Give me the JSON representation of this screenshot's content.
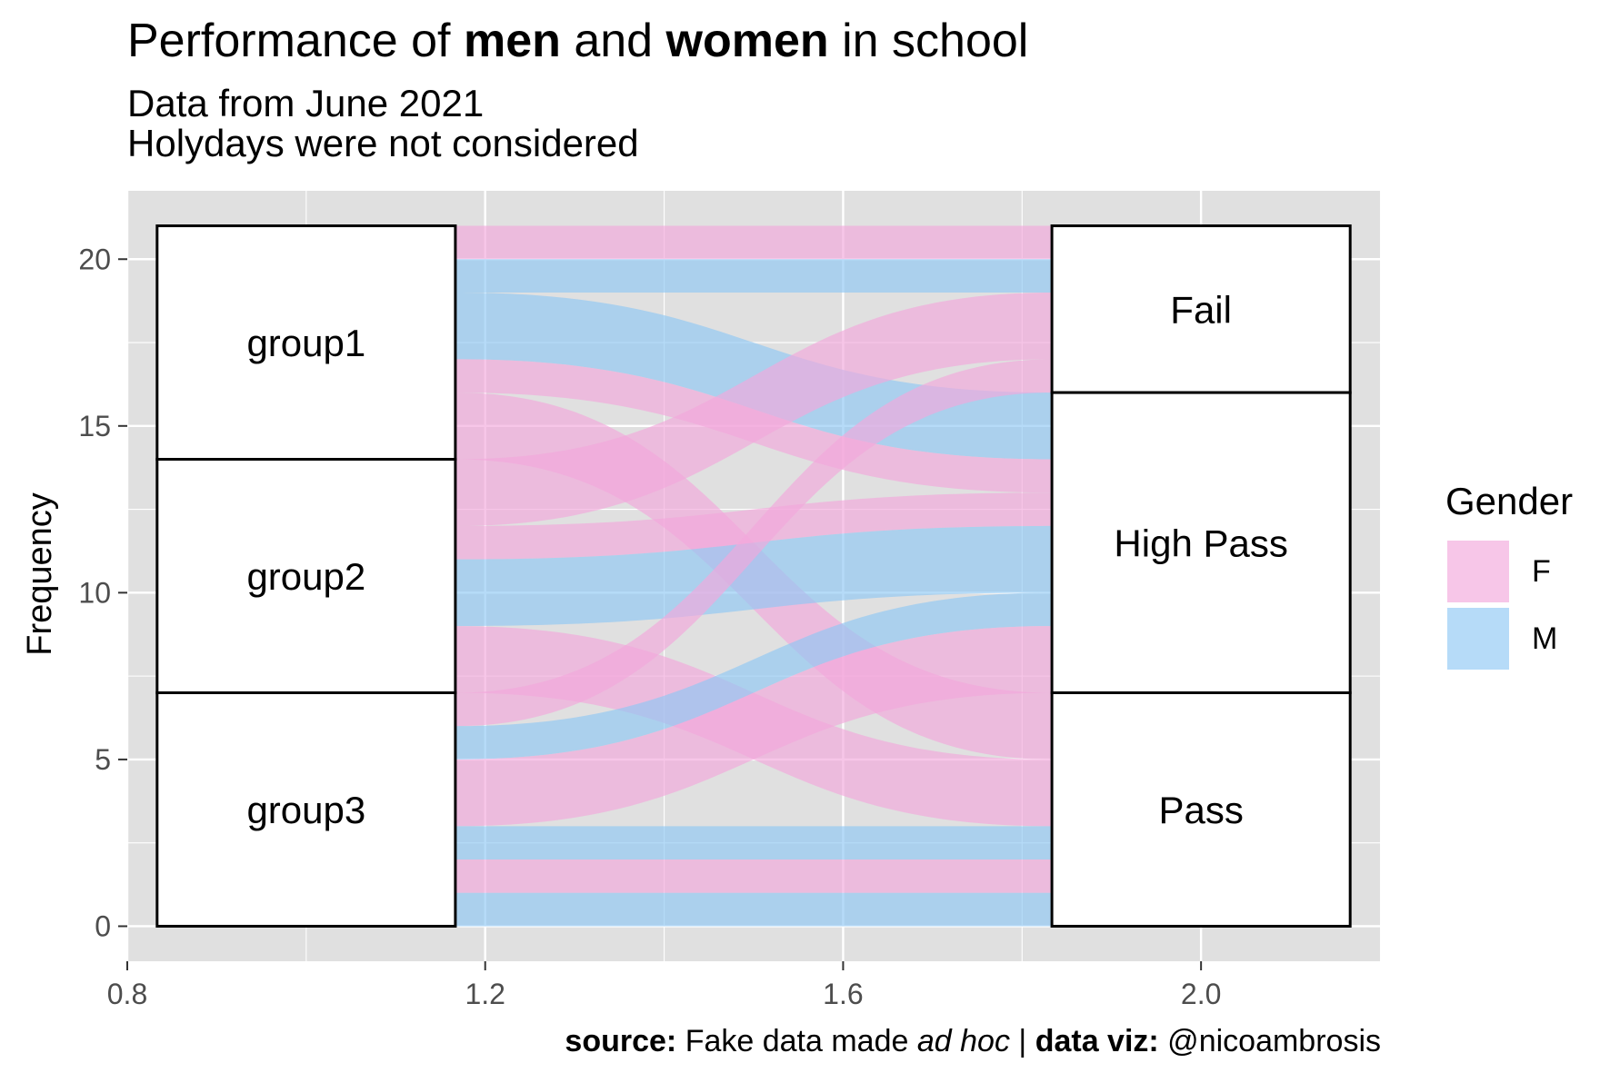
{
  "title": {
    "prefix": "Performance of ",
    "men": "men",
    "and": " and ",
    "women": "women",
    "suffix": " in school"
  },
  "subtitle": {
    "line1": "Data from June 2021",
    "line2": "Holydays were not considered"
  },
  "caption": {
    "source_label": "source:",
    "source_text": " Fake data made ",
    "adhoc": "ad hoc",
    "sep": " | ",
    "viz_label": "data viz:",
    "viz_text": " @nicoambrosis"
  },
  "colors": {
    "panel_bg": "#e0e0e0",
    "grid": "#ffffff",
    "F": "#f3a7dc",
    "M": "#8fc7f5",
    "stratum_fill": "#ffffff",
    "stratum_stroke": "#000000"
  },
  "chart_data": {
    "type": "alluvial",
    "xlabel": "",
    "ylabel": "Frequency",
    "xlim": [
      0.8,
      2.2
    ],
    "ylim": [
      0,
      20
    ],
    "x_ticks": [
      "0.8",
      "1.2",
      "1.6",
      "2.0"
    ],
    "y_ticks": [
      "0",
      "5",
      "10",
      "15",
      "20"
    ],
    "axis1": {
      "x": 1,
      "strata": [
        "group1",
        "group2",
        "group3"
      ]
    },
    "axis2": {
      "x": 2,
      "strata": [
        "Fail",
        "High Pass",
        "Pass"
      ]
    },
    "legend": {
      "title": "Gender",
      "items": [
        "F",
        "M"
      ],
      "position": "right"
    },
    "flows": [
      {
        "from": "group1",
        "to": "Fail",
        "gender": "F",
        "freq": 1
      },
      {
        "from": "group1",
        "to": "Fail",
        "gender": "M",
        "freq": 1
      },
      {
        "from": "group1",
        "to": "High Pass",
        "gender": "M",
        "freq": 2
      },
      {
        "from": "group1",
        "to": "High Pass",
        "gender": "F",
        "freq": 1
      },
      {
        "from": "group1",
        "to": "Pass",
        "gender": "F",
        "freq": 2
      },
      {
        "from": "group2",
        "to": "Fail",
        "gender": "F",
        "freq": 2
      },
      {
        "from": "group2",
        "to": "High Pass",
        "gender": "F",
        "freq": 1
      },
      {
        "from": "group2",
        "to": "High Pass",
        "gender": "M",
        "freq": 2
      },
      {
        "from": "group2",
        "to": "Pass",
        "gender": "F",
        "freq": 2
      },
      {
        "from": "group3",
        "to": "Fail",
        "gender": "F",
        "freq": 1
      },
      {
        "from": "group3",
        "to": "High Pass",
        "gender": "M",
        "freq": 1
      },
      {
        "from": "group3",
        "to": "High Pass",
        "gender": "F",
        "freq": 2
      },
      {
        "from": "group3",
        "to": "Pass",
        "gender": "M",
        "freq": 1
      },
      {
        "from": "group3",
        "to": "Pass",
        "gender": "F",
        "freq": 1
      },
      {
        "from": "group3",
        "to": "Pass",
        "gender": "M",
        "freq": 1
      }
    ]
  }
}
